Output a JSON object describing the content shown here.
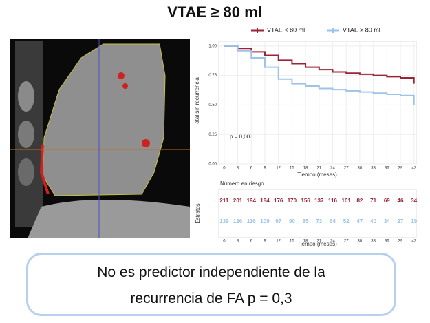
{
  "title": "VTAE ≥ 80 ml",
  "conclusion": [
    "No es predictor independiente de la",
    "recurrencia de FA p = 0,3"
  ],
  "chart_data": {
    "type": "step",
    "xlabel": "Tiempo (meses)",
    "ylabel": "Total sin recurrencia",
    "annotation": "p = 0,007",
    "x": [
      0,
      3,
      6,
      9,
      12,
      15,
      18,
      21,
      24,
      27,
      30,
      33,
      36,
      39,
      42
    ],
    "series": [
      {
        "name": "VTAE < 80 ml",
        "color": "#9b2335",
        "values": [
          1.0,
          0.98,
          0.95,
          0.92,
          0.88,
          0.85,
          0.82,
          0.8,
          0.78,
          0.77,
          0.76,
          0.75,
          0.74,
          0.73,
          0.68
        ]
      },
      {
        "name": "VTAE ≥ 80 ml",
        "color": "#9ec3ea",
        "values": [
          1.0,
          0.96,
          0.9,
          0.82,
          0.72,
          0.68,
          0.66,
          0.64,
          0.63,
          0.62,
          0.61,
          0.6,
          0.59,
          0.58,
          0.5
        ]
      }
    ],
    "xlim": [
      -1.2,
      42.5
    ],
    "xticks": [
      0,
      3,
      6,
      9,
      12,
      15,
      18,
      21,
      24,
      27,
      30,
      33,
      36,
      39,
      42
    ],
    "ylim": [
      0,
      1.04
    ],
    "yticks": [
      {
        "value": 0,
        "label": "0.00"
      },
      {
        "value": 0.25,
        "label": "0.25"
      },
      {
        "value": 0.5,
        "label": "0.50"
      },
      {
        "value": 0.75,
        "label": "0.75"
      },
      {
        "value": 1,
        "label": "1.00"
      }
    ],
    "grid": true,
    "risk_table": {
      "title": "Número en riesgo",
      "ylabel": "Estratos",
      "xlabel": "Tiempo (meses)",
      "rows": [
        [
          211,
          201,
          194,
          184,
          176,
          170,
          156,
          137,
          116,
          101,
          82,
          71,
          69,
          46,
          34
        ],
        [
          139,
          126,
          116,
          109,
          97,
          90,
          85,
          73,
          64,
          52,
          47,
          40,
          34,
          27,
          19
        ]
      ]
    }
  }
}
